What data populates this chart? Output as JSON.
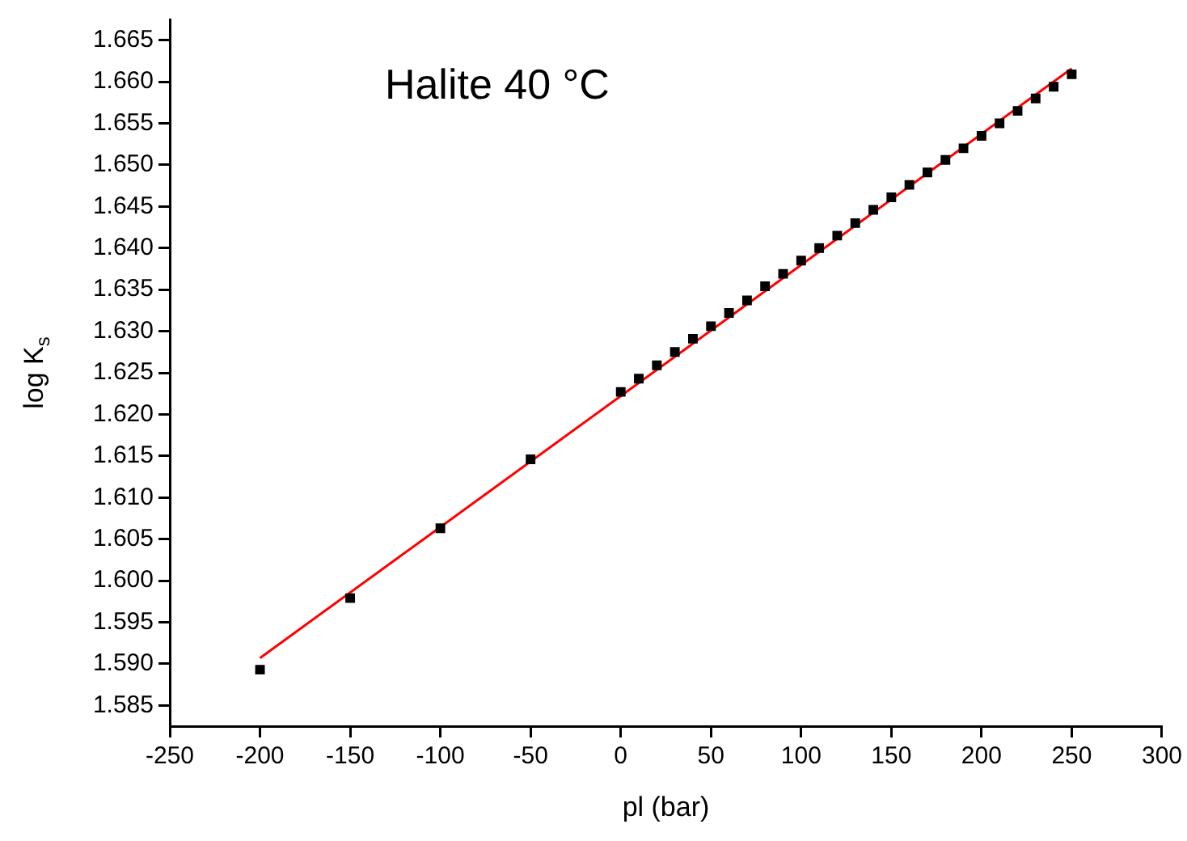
{
  "chart_data": {
    "type": "scatter",
    "title": "Halite 40 °C",
    "xlabel": "pl (bar)",
    "ylabel": "log K$_{s}$",
    "xlim": [
      -250,
      300
    ],
    "xticks": [
      -250,
      -200,
      -150,
      -100,
      -50,
      0,
      50,
      100,
      150,
      200,
      250,
      300
    ],
    "ylim": [
      1.5825,
      1.6675
    ],
    "yticks": [
      1.585,
      {
        "value": 1.59,
        "label": "1.590"
      },
      1.595,
      {
        "value": 1.6,
        "label": "1.600"
      },
      1.605,
      {
        "value": 1.61,
        "label": "1.610"
      },
      1.615,
      {
        "value": 1.62,
        "label": "1.620"
      },
      1.625,
      {
        "value": 1.63,
        "label": "1.630"
      },
      1.635,
      {
        "value": 1.64,
        "label": "1.640"
      },
      1.645,
      {
        "value": 1.65,
        "label": "1.650"
      },
      1.655,
      {
        "value": 1.66,
        "label": "1.660"
      },
      1.665
    ],
    "grid": false,
    "legend": false,
    "series": [
      {
        "type": "scatter",
        "marker": "square",
        "color": "#000000",
        "x": [
          -200,
          -150,
          -100,
          -50,
          0,
          10,
          20,
          30,
          40,
          50,
          60,
          70,
          80,
          90,
          100,
          110,
          120,
          130,
          140,
          150,
          160,
          170,
          180,
          190,
          200,
          210,
          220,
          230,
          240,
          250
        ],
        "values": [
          1.5893,
          1.5979,
          1.6063,
          1.6146,
          1.6227,
          1.6243,
          1.6259,
          1.6275,
          1.6291,
          1.6306,
          1.6322,
          1.6337,
          1.6354,
          1.6369,
          1.6385,
          1.64,
          1.6415,
          1.643,
          1.6446,
          1.6461,
          1.6476,
          1.6491,
          1.6506,
          1.652,
          1.6535,
          1.655,
          1.6565,
          1.658,
          1.6594,
          1.6609
        ]
      },
      {
        "type": "line",
        "marker": "none",
        "color": "#ff0000",
        "x": [
          -200,
          250
        ],
        "values": [
          1.5907,
          1.6616
        ]
      }
    ]
  }
}
